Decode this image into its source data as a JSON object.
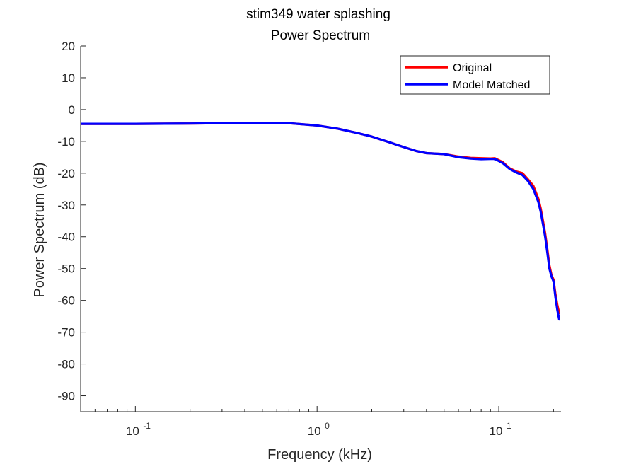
{
  "chart_data": {
    "type": "line",
    "title": "stim349 water splashing",
    "subtitle": "Power Spectrum",
    "xlabel": "Frequency (kHz)",
    "ylabel": "Power Spectrum (dB)",
    "xscale": "log",
    "xlim": [
      0.05,
      22
    ],
    "ylim": [
      -95,
      20
    ],
    "x_ticks": [
      {
        "value": 0.1,
        "base": "10",
        "exp": "-1"
      },
      {
        "value": 1,
        "base": "10",
        "exp": "0"
      },
      {
        "value": 10,
        "base": "10",
        "exp": "1"
      }
    ],
    "y_ticks": [
      20,
      10,
      0,
      -10,
      -20,
      -30,
      -40,
      -50,
      -60,
      -70,
      -80,
      -90
    ],
    "grid": false,
    "legend": "top-right",
    "series": [
      {
        "name": "Original",
        "color": "#ff0000",
        "x": [
          0.05,
          0.1,
          0.2,
          0.3,
          0.5,
          0.7,
          1.0,
          1.3,
          1.7,
          2.0,
          2.5,
          3.0,
          3.5,
          4.0,
          5.0,
          6.0,
          7.0,
          8.0,
          9.0,
          9.5,
          10.5,
          11.5,
          12.5,
          13.5,
          14.5,
          15.5,
          16.5,
          17.0,
          17.5,
          18.0,
          18.5,
          19.0,
          19.5,
          20.0,
          20.5,
          21.0,
          21.5
        ],
        "y": [
          -4.5,
          -4.5,
          -4.4,
          -4.3,
          -4.2,
          -4.3,
          -5.0,
          -6.0,
          -7.5,
          -8.5,
          -10.3,
          -11.8,
          -13.0,
          -13.7,
          -14.0,
          -14.8,
          -15.2,
          -15.3,
          -15.4,
          -15.3,
          -16.5,
          -18.5,
          -19.5,
          -20.0,
          -22.0,
          -24.0,
          -28.0,
          -31.0,
          -35.0,
          -39.0,
          -44.0,
          -49.0,
          -52.0,
          -53.5,
          -58.0,
          -61.5,
          -64.0
        ]
      },
      {
        "name": "Model Matched",
        "color": "#0000ff",
        "x": [
          0.05,
          0.1,
          0.2,
          0.3,
          0.5,
          0.7,
          1.0,
          1.3,
          1.7,
          2.0,
          2.5,
          3.0,
          3.5,
          4.0,
          5.0,
          6.0,
          7.0,
          8.0,
          9.0,
          9.5,
          10.5,
          11.5,
          12.5,
          13.5,
          14.5,
          15.5,
          16.5,
          17.0,
          17.5,
          18.0,
          18.5,
          19.0,
          19.5,
          20.0,
          20.5,
          21.0,
          21.5
        ],
        "y": [
          -4.5,
          -4.5,
          -4.4,
          -4.3,
          -4.2,
          -4.3,
          -5.0,
          -6.0,
          -7.5,
          -8.5,
          -10.3,
          -11.8,
          -13.0,
          -13.7,
          -14.0,
          -15.0,
          -15.4,
          -15.6,
          -15.5,
          -15.5,
          -16.8,
          -18.7,
          -19.8,
          -20.6,
          -22.5,
          -25.0,
          -29.0,
          -32.0,
          -36.0,
          -40.0,
          -45.0,
          -50.0,
          -52.5,
          -54.0,
          -59.0,
          -63.0,
          -66.0
        ]
      }
    ]
  }
}
